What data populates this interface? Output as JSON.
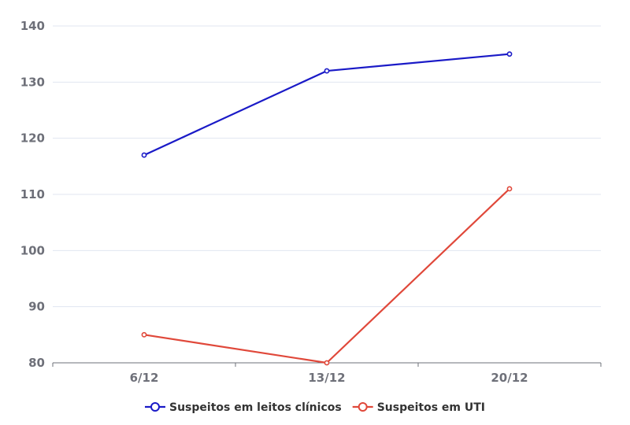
{
  "chart_data": {
    "type": "line",
    "categories": [
      "6/12",
      "13/12",
      "20/12"
    ],
    "series": [
      {
        "name": "Suspeitos em leitos clínicos",
        "values": [
          117,
          132,
          135
        ],
        "color": "#1a1ac7"
      },
      {
        "name": "Suspeitos em UTI",
        "values": [
          85,
          80,
          111
        ],
        "color": "#e0483a"
      }
    ],
    "title": "",
    "xlabel": "",
    "ylabel": "",
    "ylim": [
      80,
      140
    ],
    "yticks": [
      80,
      90,
      100,
      110,
      120,
      130,
      140
    ],
    "grid": true,
    "legend_position": "bottom-center"
  }
}
